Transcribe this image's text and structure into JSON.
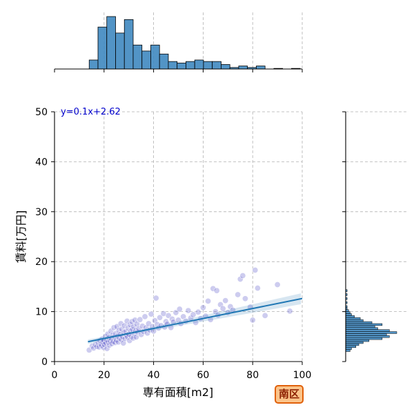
{
  "chart_data": {
    "type": "scatter",
    "title": "",
    "xlabel": "専有面積[m2]",
    "ylabel": "賃料[万円]",
    "xlim": [
      0,
      100
    ],
    "ylim": [
      0,
      50
    ],
    "x_ticks": [
      "0",
      "20",
      "40",
      "60",
      "80",
      "100"
    ],
    "y_ticks": [
      "0",
      "10",
      "20",
      "30",
      "40",
      "50"
    ],
    "grid": true,
    "regression": {
      "equation": "y=0.1x+2.62",
      "slope": 0.1,
      "intercept": 2.62,
      "x_range": [
        13.5,
        100
      ]
    },
    "colors": {
      "points": "#4b49c6",
      "regression": "#1f77b4",
      "histogram": "#3f88c0",
      "equation_text": "#0000cc"
    },
    "marginal_x_hist": {
      "bin_width": 3.55,
      "bins": [
        {
          "x0": 14.0,
          "count": 6
        },
        {
          "x0": 17.55,
          "count": 28
        },
        {
          "x0": 21.1,
          "count": 35
        },
        {
          "x0": 24.65,
          "count": 24
        },
        {
          "x0": 28.2,
          "count": 33
        },
        {
          "x0": 31.75,
          "count": 16
        },
        {
          "x0": 35.3,
          "count": 12
        },
        {
          "x0": 38.85,
          "count": 16
        },
        {
          "x0": 42.4,
          "count": 10
        },
        {
          "x0": 45.95,
          "count": 5
        },
        {
          "x0": 49.5,
          "count": 4
        },
        {
          "x0": 53.05,
          "count": 5
        },
        {
          "x0": 56.6,
          "count": 6
        },
        {
          "x0": 60.15,
          "count": 5
        },
        {
          "x0": 63.7,
          "count": 5
        },
        {
          "x0": 67.25,
          "count": 3
        },
        {
          "x0": 70.8,
          "count": 1
        },
        {
          "x0": 74.35,
          "count": 2
        },
        {
          "x0": 77.9,
          "count": 1
        },
        {
          "x0": 81.45,
          "count": 2
        },
        {
          "x0": 85.0,
          "count": 0
        },
        {
          "x0": 88.55,
          "count": 0.4
        },
        {
          "x0": 92.1,
          "count": 0
        },
        {
          "x0": 95.65,
          "count": 0.4
        }
      ]
    },
    "marginal_y_hist": {
      "bin_width": 0.4,
      "bins": [
        {
          "y0": 2.0,
          "count": 3
        },
        {
          "y0": 2.4,
          "count": 4
        },
        {
          "y0": 2.8,
          "count": 7
        },
        {
          "y0": 3.2,
          "count": 9
        },
        {
          "y0": 3.6,
          "count": 12
        },
        {
          "y0": 4.0,
          "count": 16
        },
        {
          "y0": 4.4,
          "count": 25
        },
        {
          "y0": 4.8,
          "count": 30
        },
        {
          "y0": 5.2,
          "count": 28
        },
        {
          "y0": 5.6,
          "count": 35
        },
        {
          "y0": 6.0,
          "count": 30
        },
        {
          "y0": 6.4,
          "count": 22
        },
        {
          "y0": 6.8,
          "count": 20
        },
        {
          "y0": 7.2,
          "count": 25
        },
        {
          "y0": 7.6,
          "count": 18
        },
        {
          "y0": 8.0,
          "count": 12
        },
        {
          "y0": 8.4,
          "count": 10
        },
        {
          "y0": 8.8,
          "count": 6
        },
        {
          "y0": 9.2,
          "count": 4
        },
        {
          "y0": 9.6,
          "count": 3
        },
        {
          "y0": 10.0,
          "count": 2
        },
        {
          "y0": 10.4,
          "count": 1
        },
        {
          "y0": 10.8,
          "count": 1
        },
        {
          "y0": 11.2,
          "count": 0
        },
        {
          "y0": 11.6,
          "count": 1
        },
        {
          "y0": 12.0,
          "count": 0
        },
        {
          "y0": 12.4,
          "count": 1
        },
        {
          "y0": 13.2,
          "count": 1
        },
        {
          "y0": 14.0,
          "count": 1
        }
      ]
    },
    "points": [
      [
        14.0,
        2.3
      ],
      [
        15.2,
        3.1
      ],
      [
        15.8,
        2.7
      ],
      [
        16.5,
        3.4
      ],
      [
        17.1,
        3.0
      ],
      [
        17.6,
        3.8
      ],
      [
        18.0,
        2.9
      ],
      [
        18.3,
        4.2
      ],
      [
        18.7,
        3.5
      ],
      [
        19.0,
        3.2
      ],
      [
        19.2,
        4.5
      ],
      [
        19.5,
        3.9
      ],
      [
        19.8,
        2.8
      ],
      [
        20.0,
        4.1
      ],
      [
        20.2,
        3.4
      ],
      [
        20.5,
        5.0
      ],
      [
        20.7,
        3.7
      ],
      [
        21.0,
        4.4
      ],
      [
        21.2,
        2.6
      ],
      [
        21.5,
        5.5
      ],
      [
        21.7,
        3.9
      ],
      [
        22.0,
        4.8
      ],
      [
        22.2,
        3.3
      ],
      [
        22.5,
        4.1
      ],
      [
        22.8,
        6.1
      ],
      [
        23.0,
        4.6
      ],
      [
        23.2,
        3.6
      ],
      [
        23.5,
        5.3
      ],
      [
        23.7,
        4.0
      ],
      [
        24.0,
        6.8
      ],
      [
        24.2,
        4.9
      ],
      [
        24.5,
        3.8
      ],
      [
        24.7,
        5.6
      ],
      [
        25.0,
        4.3
      ],
      [
        25.2,
        7.0
      ],
      [
        25.5,
        5.1
      ],
      [
        25.8,
        3.9
      ],
      [
        26.0,
        6.2
      ],
      [
        26.2,
        4.7
      ],
      [
        26.5,
        5.4
      ],
      [
        26.8,
        7.6
      ],
      [
        27.0,
        4.4
      ],
      [
        27.2,
        6.5
      ],
      [
        27.5,
        5.0
      ],
      [
        27.8,
        3.7
      ],
      [
        28.0,
        5.8
      ],
      [
        28.3,
        7.2
      ],
      [
        28.5,
        4.6
      ],
      [
        28.8,
        6.0
      ],
      [
        29.0,
        5.3
      ],
      [
        29.3,
        8.1
      ],
      [
        29.5,
        4.9
      ],
      [
        29.8,
        6.7
      ],
      [
        30.0,
        5.5
      ],
      [
        30.3,
        4.2
      ],
      [
        30.5,
        7.4
      ],
      [
        30.8,
        6.1
      ],
      [
        31.0,
        5.0
      ],
      [
        31.3,
        8.0
      ],
      [
        31.5,
        6.4
      ],
      [
        31.8,
        4.7
      ],
      [
        32.0,
        7.0
      ],
      [
        32.3,
        5.6
      ],
      [
        32.5,
        8.3
      ],
      [
        32.8,
        6.2
      ],
      [
        33.0,
        4.9
      ],
      [
        33.3,
        7.5
      ],
      [
        33.5,
        5.9
      ],
      [
        34.0,
        6.6
      ],
      [
        34.5,
        8.4
      ],
      [
        35.0,
        5.4
      ],
      [
        35.5,
        7.1
      ],
      [
        36.0,
        6.0
      ],
      [
        36.5,
        9.0
      ],
      [
        37.0,
        6.8
      ],
      [
        37.5,
        5.7
      ],
      [
        38.0,
        7.6
      ],
      [
        38.5,
        6.3
      ],
      [
        39.0,
        9.5
      ],
      [
        39.5,
        7.0
      ],
      [
        40.0,
        6.1
      ],
      [
        40.5,
        8.2
      ],
      [
        41.0,
        12.7
      ],
      [
        41.5,
        7.4
      ],
      [
        42.0,
        6.7
      ],
      [
        42.5,
        8.8
      ],
      [
        43.0,
        7.2
      ],
      [
        44.0,
        9.6
      ],
      [
        44.5,
        6.9
      ],
      [
        45.0,
        8.0
      ],
      [
        45.5,
        7.5
      ],
      [
        46.0,
        9.2
      ],
      [
        47.0,
        6.8
      ],
      [
        47.5,
        8.5
      ],
      [
        48.0,
        7.9
      ],
      [
        49.0,
        9.8
      ],
      [
        50.0,
        8.3
      ],
      [
        50.5,
        10.5
      ],
      [
        51.0,
        7.6
      ],
      [
        52.0,
        9.0
      ],
      [
        53.0,
        8.1
      ],
      [
        54.0,
        10.2
      ],
      [
        55.0,
        8.7
      ],
      [
        56.0,
        9.4
      ],
      [
        57.0,
        7.8
      ],
      [
        58.0,
        9.9
      ],
      [
        59.0,
        8.6
      ],
      [
        60.0,
        10.8
      ],
      [
        61.0,
        9.1
      ],
      [
        62.0,
        12.1
      ],
      [
        63.0,
        8.4
      ],
      [
        64.0,
        14.6
      ],
      [
        65.0,
        10.0
      ],
      [
        65.5,
        14.2
      ],
      [
        66.0,
        9.3
      ],
      [
        67.0,
        11.4
      ],
      [
        68.0,
        10.6
      ],
      [
        69.0,
        12.2
      ],
      [
        70.0,
        9.8
      ],
      [
        71.0,
        11.0
      ],
      [
        72.0,
        10.3
      ],
      [
        74.0,
        13.4
      ],
      [
        75.0,
        16.5
      ],
      [
        76.0,
        17.2
      ],
      [
        77.0,
        12.6
      ],
      [
        79.0,
        10.9
      ],
      [
        80.0,
        8.3
      ],
      [
        81.0,
        18.3
      ],
      [
        82.0,
        14.7
      ],
      [
        85.0,
        9.2
      ],
      [
        90.0,
        15.4
      ],
      [
        95.0,
        10.1
      ]
    ]
  },
  "badge": {
    "label": "南区"
  }
}
